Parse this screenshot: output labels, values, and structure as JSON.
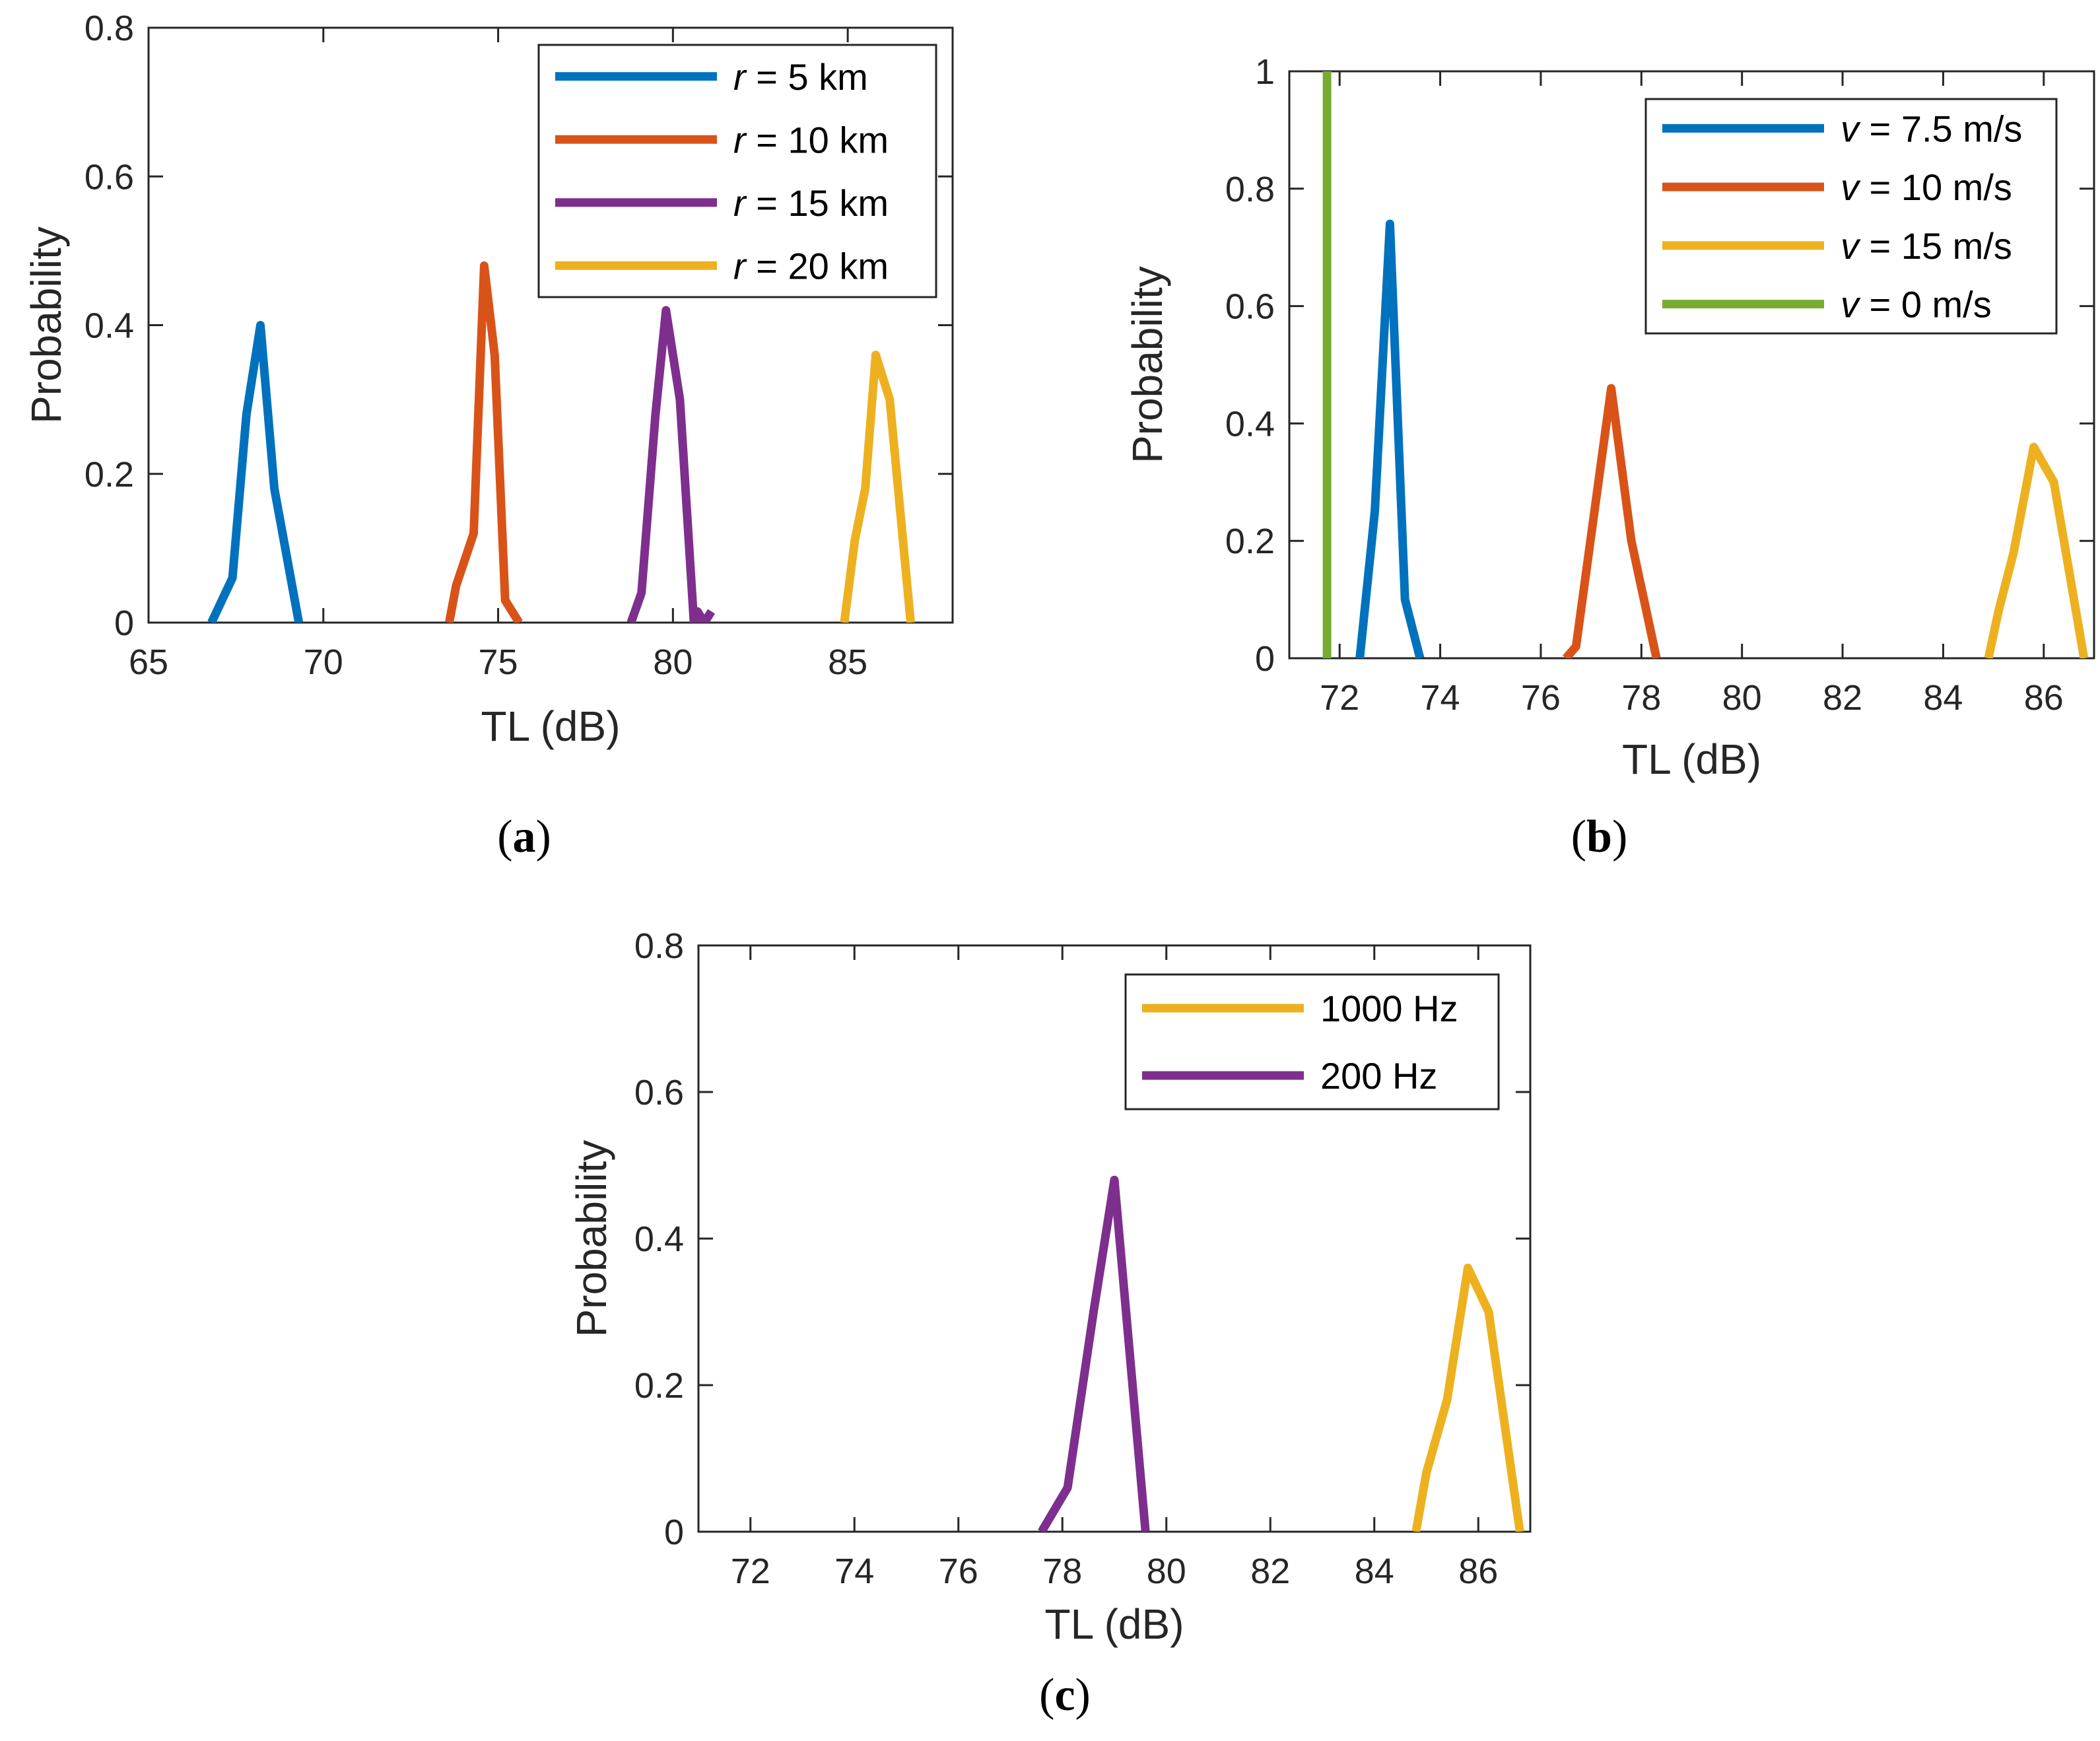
{
  "colors": {
    "blue": "#0072BD",
    "orange": "#D95319",
    "yellow": "#EDB120",
    "purple": "#7E2F8E",
    "green": "#77AC30"
  },
  "chart_data": [
    {
      "id": "a",
      "type": "line",
      "caption_letter": "a",
      "xlabel": "TL (dB)",
      "ylabel": "Probability",
      "xlim": [
        65,
        88
      ],
      "ylim": [
        0,
        0.8
      ],
      "xticks": [
        65,
        70,
        75,
        80,
        85
      ],
      "yticks": [
        0,
        0.2,
        0.4,
        0.6,
        0.8
      ],
      "xtick_labels": [
        "65",
        "70",
        "75",
        "80",
        "85"
      ],
      "ytick_labels": [
        "0",
        "0.2",
        "0.4",
        "0.6",
        "0.8"
      ],
      "legend_position": "top-right",
      "series": [
        {
          "var": "r",
          "label": " = 5 km",
          "color": "blue",
          "x": [
            66.8,
            67.4,
            67.8,
            68.2,
            68.6,
            69.3
          ],
          "y": [
            0.0,
            0.06,
            0.28,
            0.4,
            0.18,
            0.0
          ]
        },
        {
          "var": "r",
          "label": " = 10 km",
          "color": "orange",
          "x": [
            73.6,
            73.8,
            74.3,
            74.6,
            74.9,
            75.2,
            75.6
          ],
          "y": [
            0.0,
            0.05,
            0.12,
            0.48,
            0.36,
            0.03,
            0.0
          ]
        },
        {
          "var": "r",
          "label": " = 15 km",
          "color": "purple",
          "x": [
            78.8,
            79.1,
            79.5,
            79.8,
            80.2,
            80.6,
            80.7,
            80.9,
            81.1
          ],
          "y": [
            0.0,
            0.04,
            0.28,
            0.42,
            0.3,
            0.0,
            0.015,
            0.0,
            0.015
          ]
        },
        {
          "var": "r",
          "label": " = 20 km",
          "color": "yellow",
          "x": [
            84.9,
            85.2,
            85.5,
            85.8,
            86.2,
            86.8
          ],
          "y": [
            0.0,
            0.11,
            0.18,
            0.36,
            0.3,
            0.0
          ]
        }
      ]
    },
    {
      "id": "b",
      "type": "line",
      "caption_letter": "b",
      "xlabel": "TL (dB)",
      "ylabel": "Probability",
      "xlim": [
        71,
        87
      ],
      "ylim": [
        0,
        1
      ],
      "xticks": [
        72,
        74,
        76,
        78,
        80,
        82,
        84,
        86
      ],
      "yticks": [
        0,
        0.2,
        0.4,
        0.6,
        0.8,
        1
      ],
      "xtick_labels": [
        "72",
        "74",
        "76",
        "78",
        "80",
        "82",
        "84",
        "86"
      ],
      "ytick_labels": [
        "0",
        "0.2",
        "0.4",
        "0.6",
        "0.8",
        "1"
      ],
      "legend_position": "top-right",
      "series": [
        {
          "var": "v",
          "label": " = 7.5 m/s",
          "color": "blue",
          "x": [
            72.4,
            72.7,
            73.0,
            73.3,
            73.6
          ],
          "y": [
            0.0,
            0.25,
            0.74,
            0.1,
            0.0
          ]
        },
        {
          "var": "v",
          "label": " = 10 m/s",
          "color": "orange",
          "x": [
            76.5,
            76.7,
            77.4,
            77.8,
            78.3
          ],
          "y": [
            0.0,
            0.02,
            0.46,
            0.2,
            0.0
          ]
        },
        {
          "var": "v",
          "label": " = 15 m/s",
          "color": "yellow",
          "x": [
            84.9,
            85.1,
            85.4,
            85.8,
            86.2,
            86.8
          ],
          "y": [
            0.0,
            0.08,
            0.18,
            0.36,
            0.3,
            0.0
          ]
        },
        {
          "var": "v",
          "label": " = 0 m/s",
          "color": "green",
          "x": [
            71.75,
            71.75
          ],
          "y": [
            0.0,
            1.0
          ]
        }
      ]
    },
    {
      "id": "c",
      "type": "line",
      "caption_letter": "c",
      "xlabel": "TL (dB)",
      "ylabel": "Probability",
      "xlim": [
        71,
        87
      ],
      "ylim": [
        0,
        0.8
      ],
      "xticks": [
        72,
        74,
        76,
        78,
        80,
        82,
        84,
        86
      ],
      "yticks": [
        0,
        0.2,
        0.4,
        0.6,
        0.8
      ],
      "xtick_labels": [
        "72",
        "74",
        "76",
        "78",
        "80",
        "82",
        "84",
        "86"
      ],
      "ytick_labels": [
        "0",
        "0.2",
        "0.4",
        "0.6",
        "0.8"
      ],
      "legend_position": "top-right",
      "series": [
        {
          "var": "",
          "label": "1000 Hz",
          "color": "yellow",
          "x": [
            84.8,
            85.0,
            85.4,
            85.8,
            86.2,
            86.8
          ],
          "y": [
            0.0,
            0.08,
            0.18,
            0.36,
            0.3,
            0.0
          ]
        },
        {
          "var": "",
          "label": "200 Hz",
          "color": "purple",
          "x": [
            77.6,
            78.1,
            78.6,
            79.0,
            79.6
          ],
          "y": [
            0.0,
            0.06,
            0.3,
            0.48,
            0.0
          ]
        }
      ]
    }
  ]
}
